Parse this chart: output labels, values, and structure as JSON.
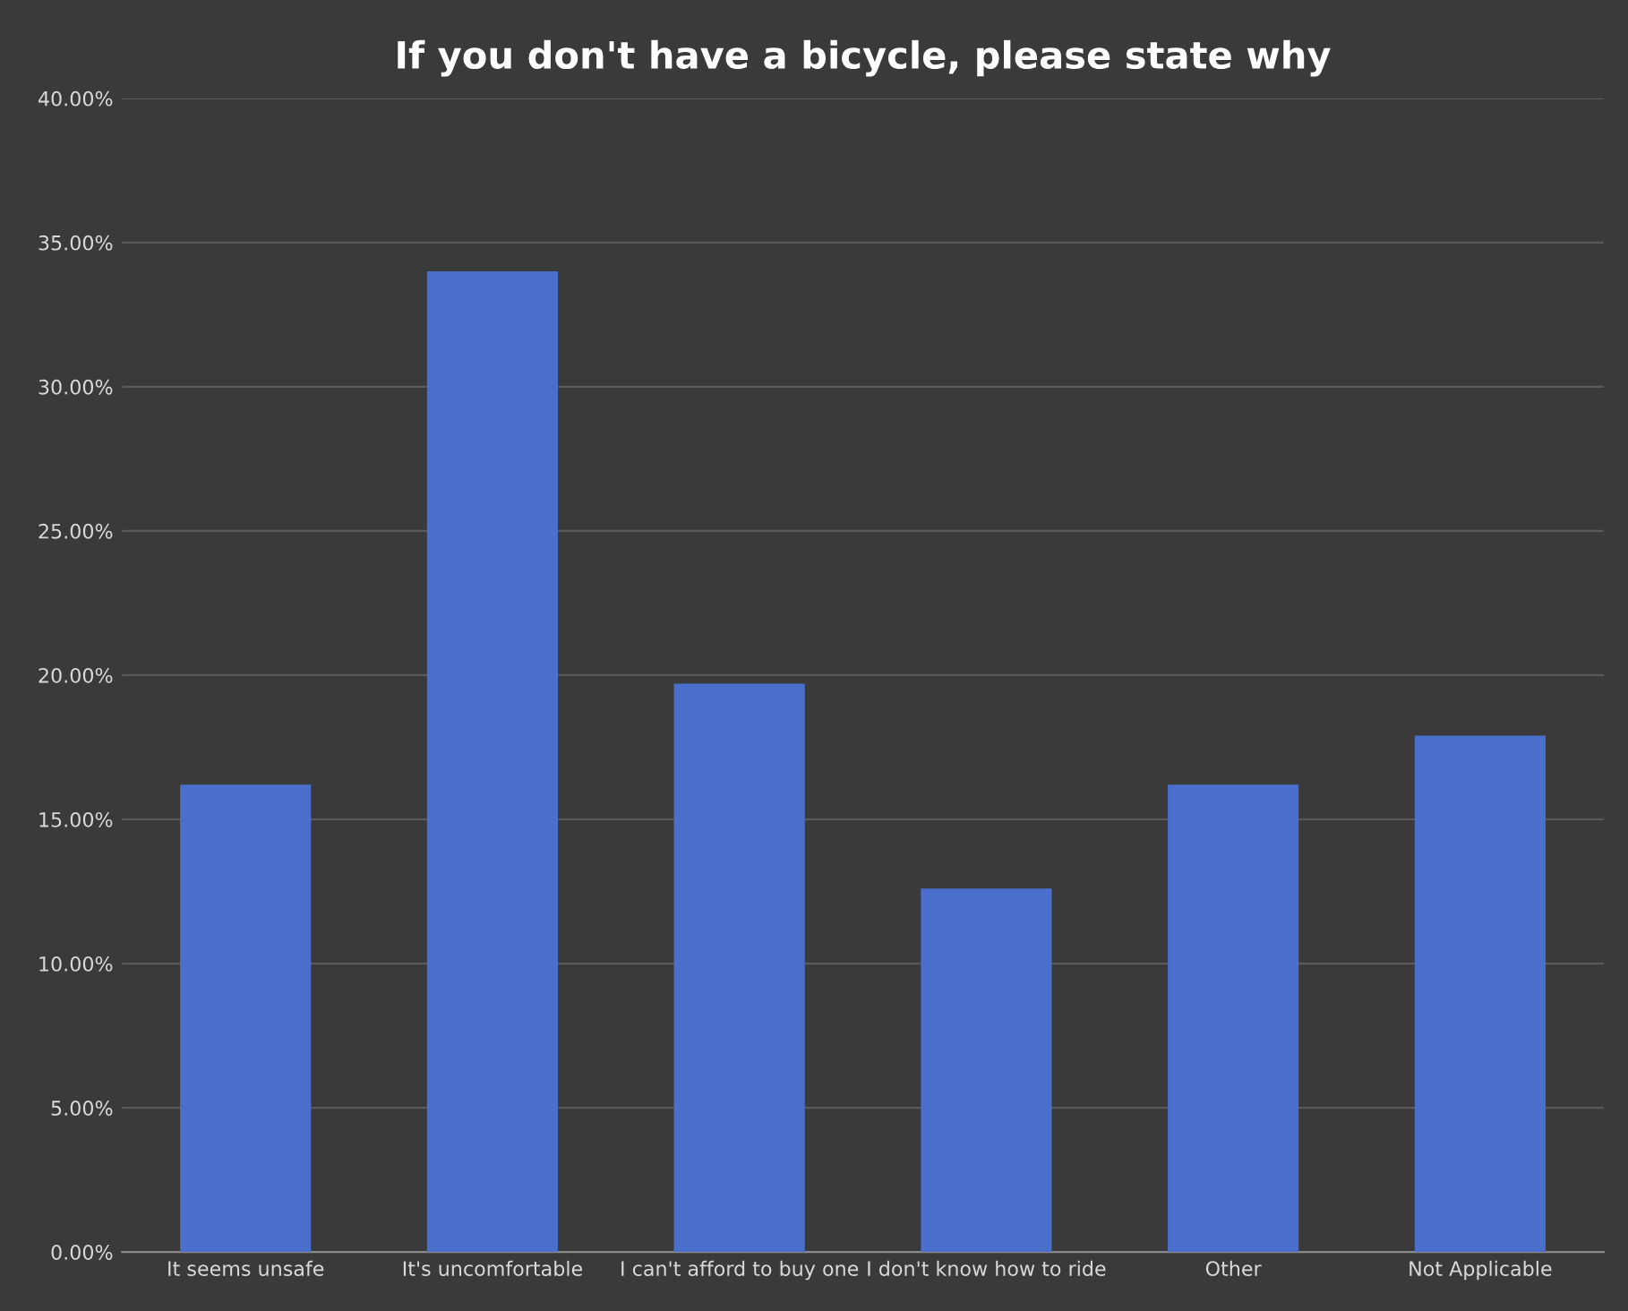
{
  "chart_data": {
    "type": "bar",
    "title": "If you don't have a bicycle, please state why",
    "categories": [
      "It seems unsafe",
      "It's uncomfortable",
      "I can't afford to buy one",
      "I don't know how to ride",
      "Other",
      "Not Applicable"
    ],
    "values": [
      16.2,
      34.0,
      19.7,
      12.6,
      16.2,
      17.9
    ],
    "color": "#4a6fcc",
    "ylim": [
      0,
      40
    ],
    "yticks": [
      {
        "value": 0,
        "label": "0.00%"
      },
      {
        "value": 5,
        "label": "5.00%"
      },
      {
        "value": 10,
        "label": "10.00%"
      },
      {
        "value": 15,
        "label": "15.00%"
      },
      {
        "value": 20,
        "label": "20.00%"
      },
      {
        "value": 25,
        "label": "25.00%"
      },
      {
        "value": 30,
        "label": "30.00%"
      },
      {
        "value": 35,
        "label": "35.00%"
      },
      {
        "value": 40,
        "label": "40.00%"
      }
    ],
    "grid": "y",
    "legend": false
  }
}
